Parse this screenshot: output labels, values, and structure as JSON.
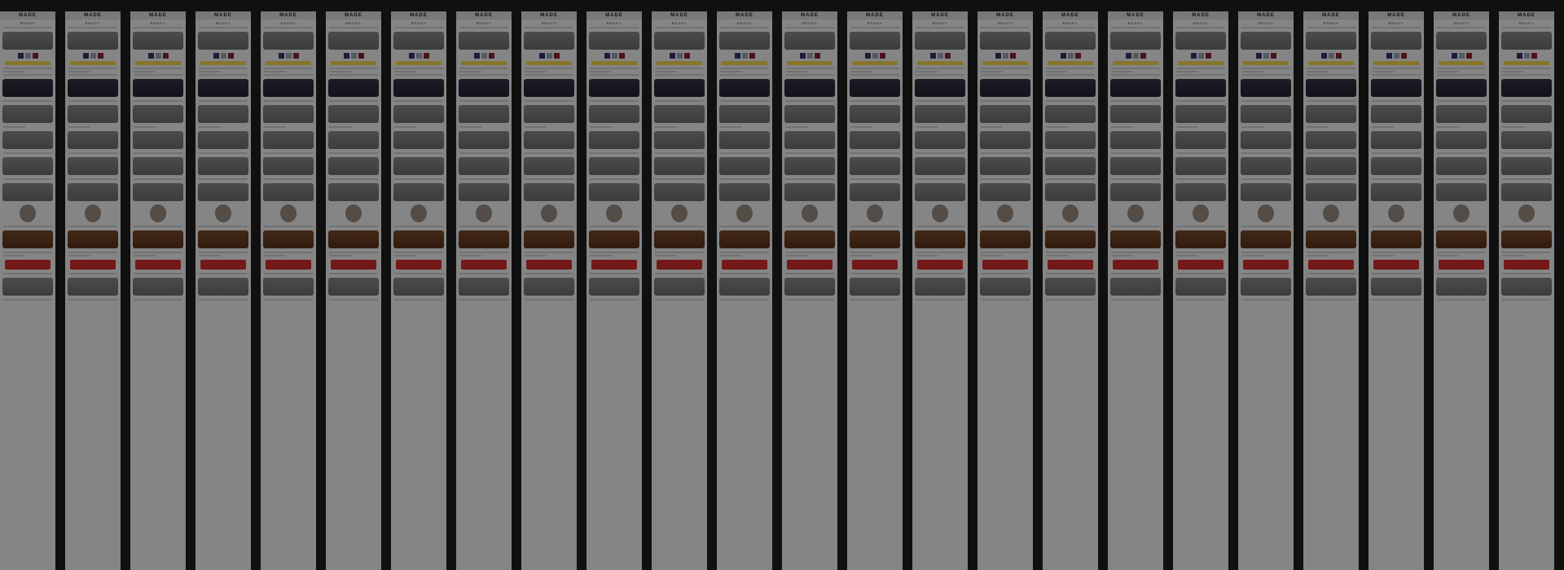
{
  "page": {
    "brand": "MADE",
    "product_title": "BRADY",
    "background": "#1e1e1e",
    "overlay": "rgba(0,0,0,0.45)"
  },
  "columns_count": 24
}
